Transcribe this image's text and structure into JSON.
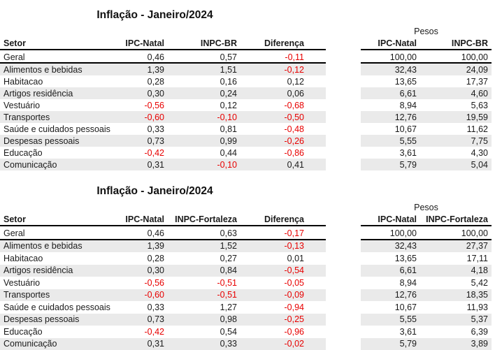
{
  "colors": {
    "negative": "#e80000",
    "stripe": "#eaeaea",
    "border": "#000000",
    "text": "#1a1a1a"
  },
  "tables": [
    {
      "title": "Inflação - Janeiro/2024",
      "pesos_label": "Pesos",
      "col_headers": [
        "Setor",
        "IPC-Natal",
        "INPC-BR",
        "Diferença"
      ],
      "pesos_headers": [
        "IPC-Natal",
        "INPC-BR"
      ],
      "rows": [
        {
          "setor": "Geral",
          "ipc_natal": "0,46",
          "inpc": "0,57",
          "diferenca": "-0,11",
          "peso_ipc": "100,00",
          "peso_inpc": "100,00"
        },
        {
          "setor": "Alimentos e bebidas",
          "ipc_natal": "1,39",
          "inpc": "1,51",
          "diferenca": "-0,12",
          "peso_ipc": "32,43",
          "peso_inpc": "24,09"
        },
        {
          "setor": "Habitacao",
          "ipc_natal": "0,28",
          "inpc": "0,16",
          "diferenca": "0,12",
          "peso_ipc": "13,65",
          "peso_inpc": "17,37"
        },
        {
          "setor": "Artigos residência",
          "ipc_natal": "0,30",
          "inpc": "0,24",
          "diferenca": "0,06",
          "peso_ipc": "6,61",
          "peso_inpc": "4,60"
        },
        {
          "setor": "Vestuário",
          "ipc_natal": "-0,56",
          "inpc": "0,12",
          "diferenca": "-0,68",
          "peso_ipc": "8,94",
          "peso_inpc": "5,63"
        },
        {
          "setor": "Transportes",
          "ipc_natal": "-0,60",
          "inpc": "-0,10",
          "diferenca": "-0,50",
          "peso_ipc": "12,76",
          "peso_inpc": "19,59"
        },
        {
          "setor": "Saúde e cuidados pessoais",
          "ipc_natal": "0,33",
          "inpc": "0,81",
          "diferenca": "-0,48",
          "peso_ipc": "10,67",
          "peso_inpc": "11,62"
        },
        {
          "setor": "Despesas pessoais",
          "ipc_natal": "0,73",
          "inpc": "0,99",
          "diferenca": "-0,26",
          "peso_ipc": "5,55",
          "peso_inpc": "7,75"
        },
        {
          "setor": "Educação",
          "ipc_natal": "-0,42",
          "inpc": "0,44",
          "diferenca": "-0,86",
          "peso_ipc": "3,61",
          "peso_inpc": "4,30"
        },
        {
          "setor": "Comunicação",
          "ipc_natal": "0,31",
          "inpc": "-0,10",
          "diferenca": "0,41",
          "peso_ipc": "5,79",
          "peso_inpc": "5,04"
        }
      ]
    },
    {
      "title": "Inflação - Janeiro/2024",
      "pesos_label": "Pesos",
      "col_headers": [
        "Setor",
        "IPC-Natal",
        "INPC-Fortaleza",
        "Diferença"
      ],
      "pesos_headers": [
        "IPC-Natal",
        "INPC-Fortaleza"
      ],
      "rows": [
        {
          "setor": "Geral",
          "ipc_natal": "0,46",
          "inpc": "0,63",
          "diferenca": "-0,17",
          "peso_ipc": "100,00",
          "peso_inpc": "100,00"
        },
        {
          "setor": "Alimentos e bebidas",
          "ipc_natal": "1,39",
          "inpc": "1,52",
          "diferenca": "-0,13",
          "peso_ipc": "32,43",
          "peso_inpc": "27,37"
        },
        {
          "setor": "Habitacao",
          "ipc_natal": "0,28",
          "inpc": "0,27",
          "diferenca": "0,01",
          "peso_ipc": "13,65",
          "peso_inpc": "17,11"
        },
        {
          "setor": "Artigos residência",
          "ipc_natal": "0,30",
          "inpc": "0,84",
          "diferenca": "-0,54",
          "peso_ipc": "6,61",
          "peso_inpc": "4,18"
        },
        {
          "setor": "Vestuário",
          "ipc_natal": "-0,56",
          "inpc": "-0,51",
          "diferenca": "-0,05",
          "peso_ipc": "8,94",
          "peso_inpc": "5,42"
        },
        {
          "setor": "Transportes",
          "ipc_natal": "-0,60",
          "inpc": "-0,51",
          "diferenca": "-0,09",
          "peso_ipc": "12,76",
          "peso_inpc": "18,35"
        },
        {
          "setor": "Saúde e cuidados pessoais",
          "ipc_natal": "0,33",
          "inpc": "1,27",
          "diferenca": "-0,94",
          "peso_ipc": "10,67",
          "peso_inpc": "11,93"
        },
        {
          "setor": "Despesas pessoais",
          "ipc_natal": "0,73",
          "inpc": "0,98",
          "diferenca": "-0,25",
          "peso_ipc": "5,55",
          "peso_inpc": "5,37"
        },
        {
          "setor": "Educação",
          "ipc_natal": "-0,42",
          "inpc": "0,54",
          "diferenca": "-0,96",
          "peso_ipc": "3,61",
          "peso_inpc": "6,39"
        },
        {
          "setor": "Comunicação",
          "ipc_natal": "0,31",
          "inpc": "0,33",
          "diferenca": "-0,02",
          "peso_ipc": "5,79",
          "peso_inpc": "3,89"
        }
      ]
    }
  ]
}
